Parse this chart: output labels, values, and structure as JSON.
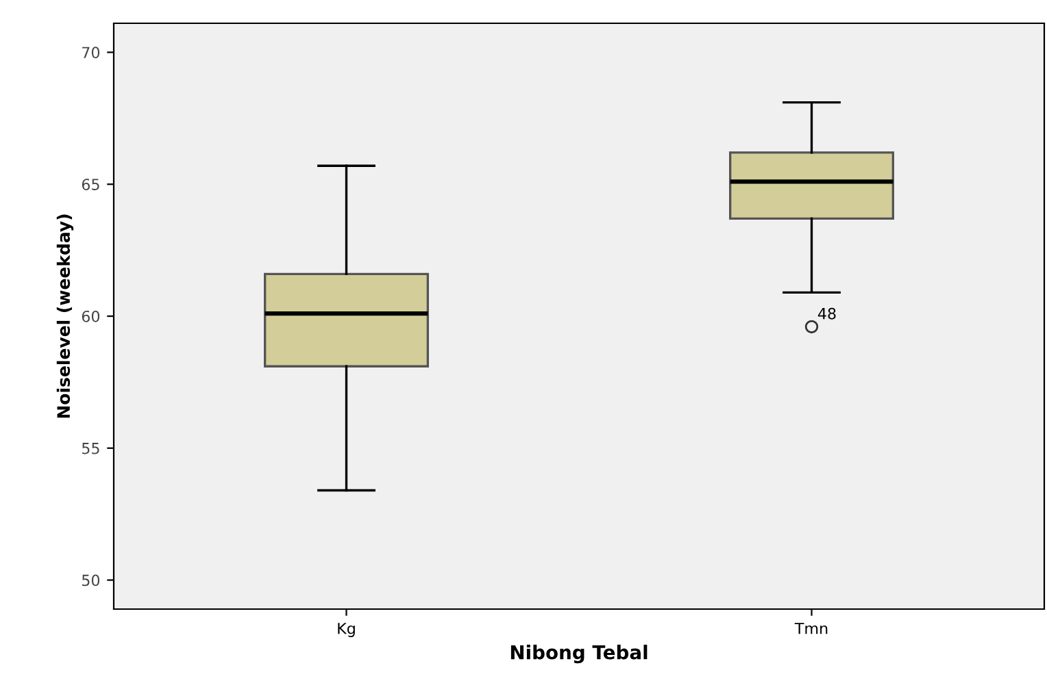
{
  "chart_data": {
    "type": "box",
    "xlabel": "Nibong Tebal",
    "ylabel": "Noiselevel (weekday)",
    "categories": [
      "Kg",
      "Tmn"
    ],
    "boxes": [
      {
        "low": 53.4,
        "q1": 58.1,
        "median": 60.1,
        "q3": 61.6,
        "high": 65.7
      },
      {
        "low": 60.9,
        "q1": 63.7,
        "median": 65.1,
        "q3": 66.2,
        "high": 68.1,
        "outliers": [
          59.6
        ]
      }
    ],
    "color": "#d3ce99",
    "ylim": [
      48.9,
      71.1
    ],
    "yticks": [
      50,
      55,
      60,
      65,
      70
    ],
    "grid": false,
    "annotations": [
      "48"
    ]
  }
}
